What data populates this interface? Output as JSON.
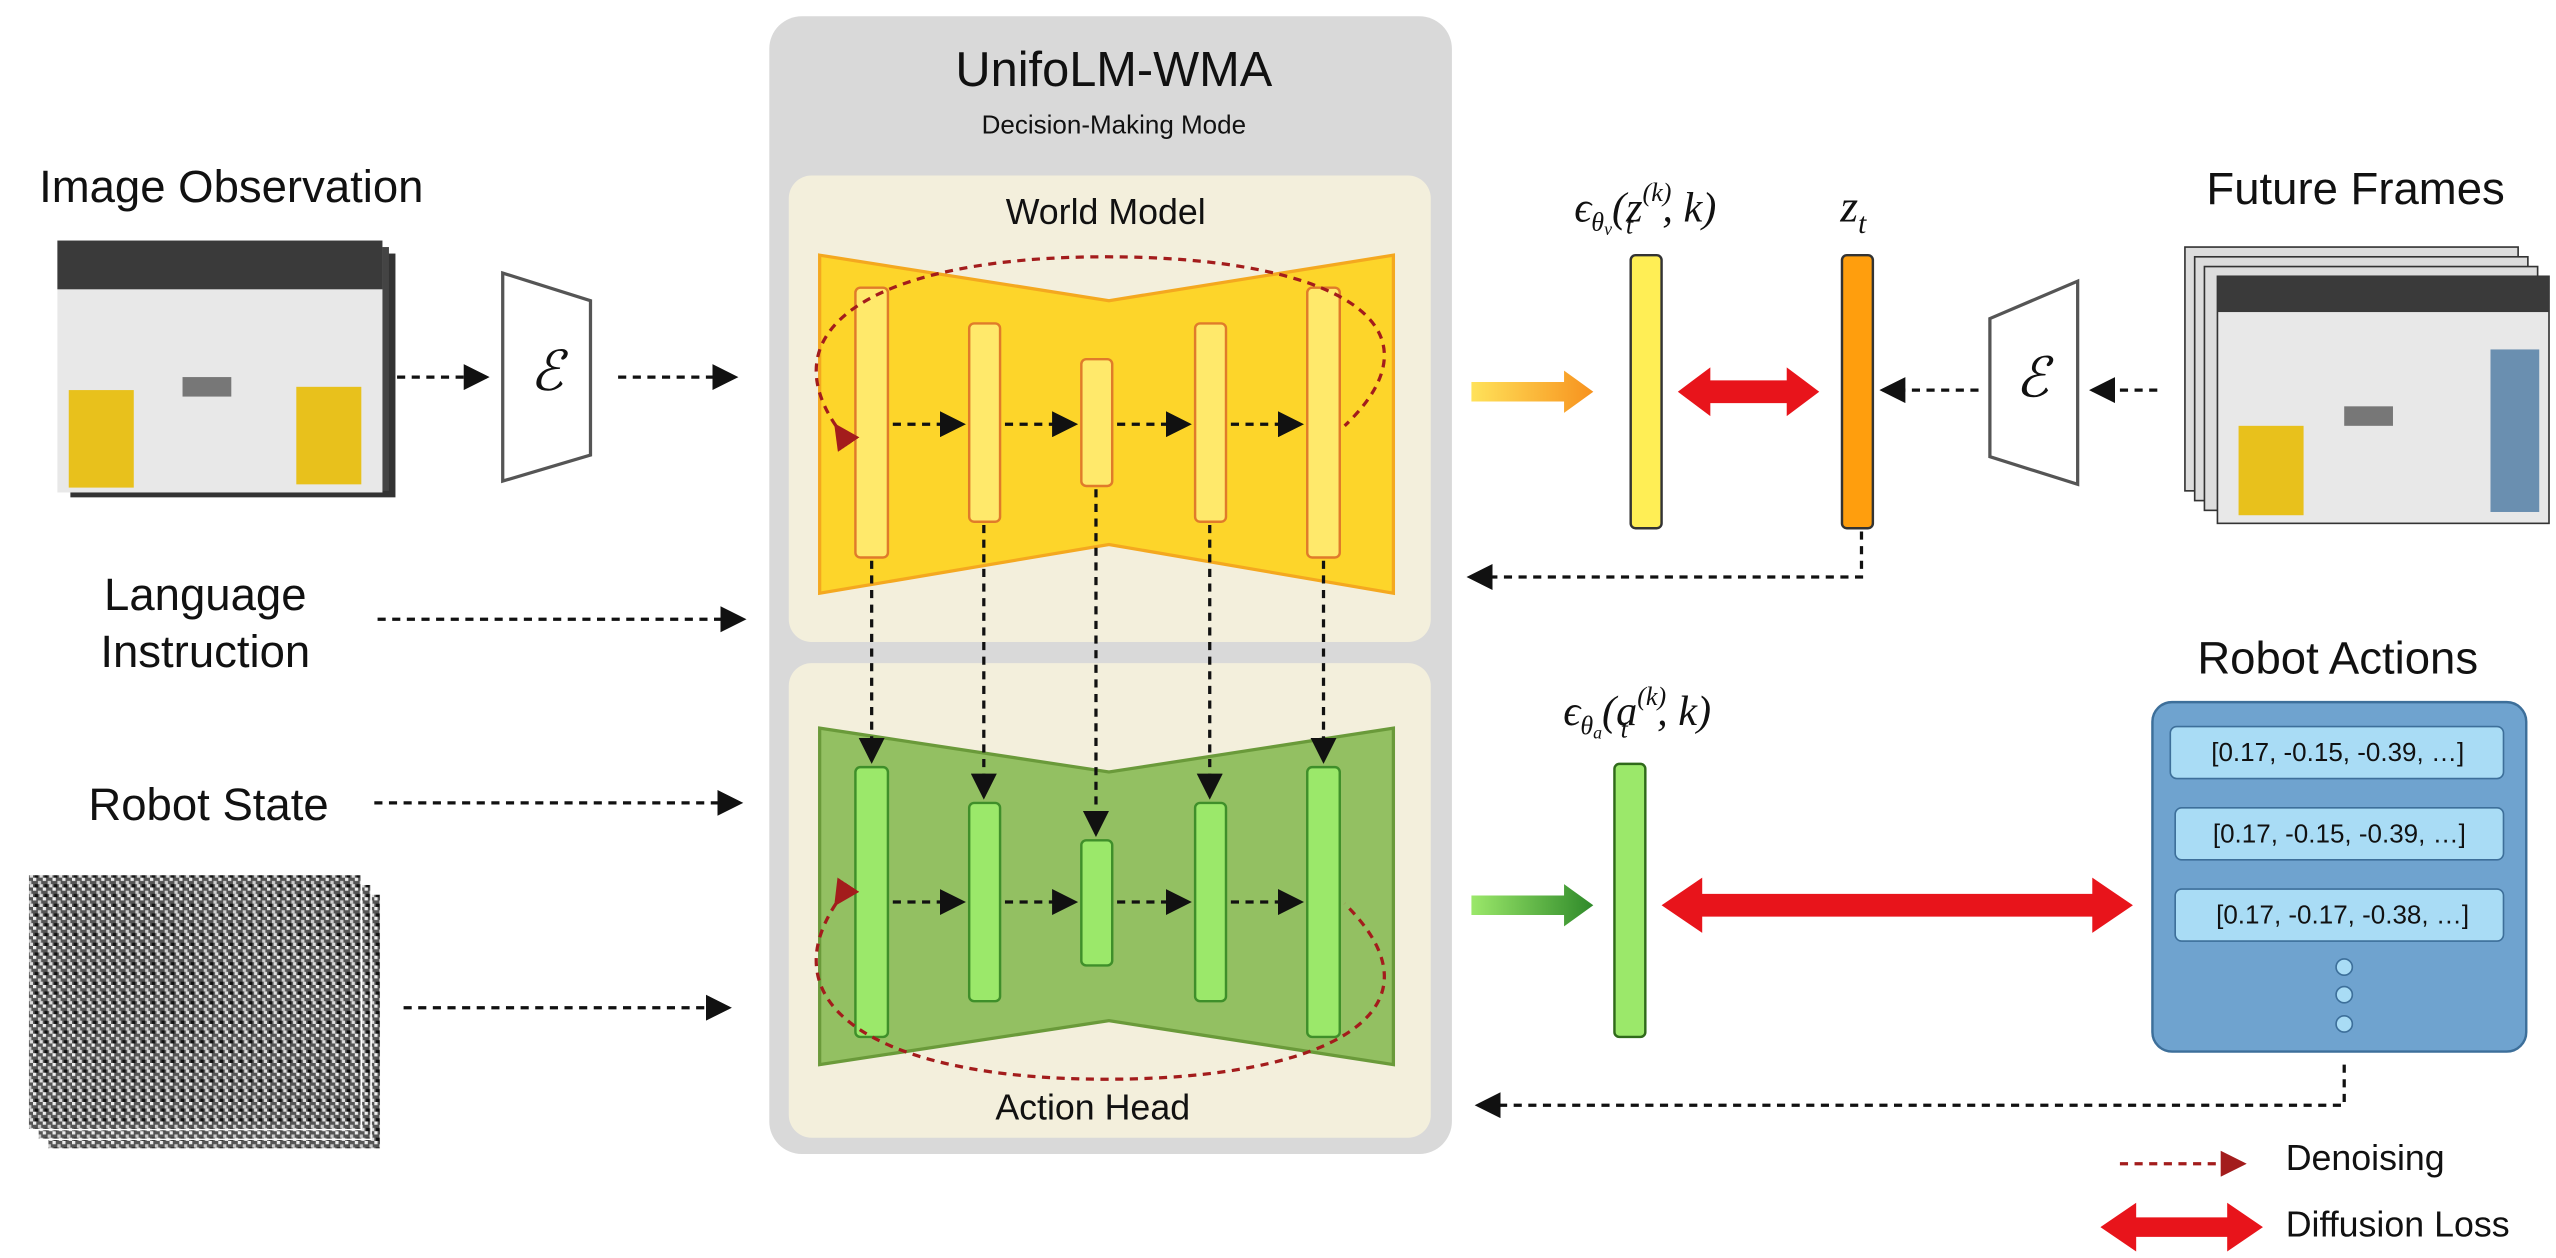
{
  "header": {
    "title": "UnifoLM-WMA",
    "subtitle": "Decision-Making Mode"
  },
  "inputs": {
    "image_observation": "Image Observation",
    "language_instruction": [
      "Language",
      "Instruction"
    ],
    "robot_state": "Robot State"
  },
  "encoder_symbol": "ℰ",
  "modules": {
    "world_model": "World Model",
    "action_head": "Action Head"
  },
  "future_frames": "Future Frames",
  "formulas": {
    "video_noise": {
      "base": "ϵ",
      "sub": "θ",
      "subsub": "v",
      "open": "(z",
      "var_sub": "t",
      "var_sup": "(k)",
      "tail": ", k)"
    },
    "latent": {
      "base": "z",
      "sub": "t"
    },
    "action_noise": {
      "base": "ϵ",
      "sub": "θ",
      "subsub": "a",
      "open": "(a",
      "var_sub": "t",
      "var_sup": "(k)",
      "tail": ", k)"
    }
  },
  "robot_actions": {
    "title": "Robot Actions",
    "rows": [
      "[0.17, -0.15, -0.39, …]",
      "[0.17, -0.15, -0.39, …]",
      "[0.17, -0.17, -0.38, …]"
    ]
  },
  "legend": {
    "denoising": "Denoising",
    "diffusion_loss": "Diffusion Loss"
  }
}
